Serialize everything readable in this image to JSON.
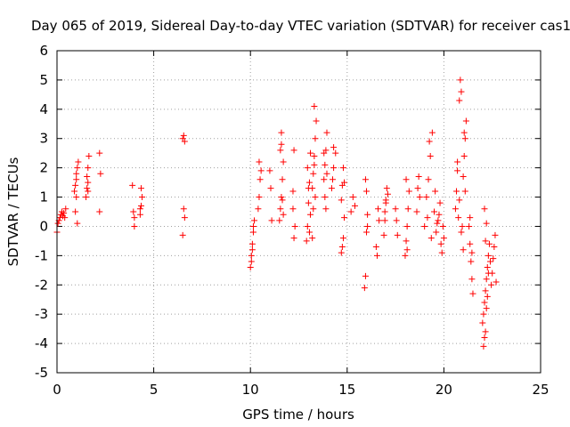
{
  "chart_data": {
    "type": "scatter",
    "title": "Day 065 of 2019, Sidereal Day-to-day VTEC variation (SDTVAR) for receiver cas1",
    "xlabel": "GPS time / hours",
    "ylabel": "SDTVAR / TECUs",
    "xlim": [
      0,
      25
    ],
    "ylim": [
      -5,
      6
    ],
    "xticks": [
      0,
      5,
      10,
      15,
      20,
      25
    ],
    "yticks": [
      -5,
      -4,
      -3,
      -2,
      -1,
      0,
      1,
      2,
      3,
      4,
      5,
      6
    ],
    "xtick_labels": [
      "0",
      "5",
      "10",
      "15",
      "20",
      "25"
    ],
    "ytick_labels": [
      "-5",
      "-4",
      "-3",
      "-2",
      "-1",
      "0",
      "1",
      "2",
      "3",
      "4",
      "5",
      "6"
    ],
    "grid": true,
    "marker": "+",
    "color": "#ff0000",
    "series": [
      {
        "name": "cas1",
        "x": [
          0.0,
          0.05,
          0.1,
          0.15,
          0.2,
          0.25,
          0.3,
          0.35,
          0.4,
          0.45,
          0.9,
          0.95,
          1.0,
          1.0,
          1.05,
          1.1,
          0.95,
          1.05,
          1.0,
          1.5,
          1.55,
          1.6,
          1.6,
          1.65,
          1.55,
          1.6,
          2.2,
          2.25,
          2.2,
          3.9,
          3.95,
          4.0,
          4.0,
          4.3,
          4.35,
          4.4,
          4.35,
          4.3,
          6.5,
          6.55,
          6.6,
          6.55,
          6.6,
          6.5,
          10.0,
          10.05,
          10.1,
          10.15,
          10.2,
          10.1,
          10.05,
          10.15,
          10.4,
          10.45,
          10.5,
          10.55,
          10.45,
          11.0,
          11.05,
          11.1,
          11.5,
          11.55,
          11.6,
          11.65,
          11.7,
          11.55,
          11.6,
          11.65,
          11.7,
          11.6,
          12.2,
          12.25,
          12.3,
          12.2,
          12.25,
          12.9,
          12.95,
          13.0,
          13.05,
          13.1,
          12.95,
          13.0,
          13.05,
          13.1,
          13.2,
          13.25,
          13.3,
          13.35,
          13.4,
          13.3,
          13.25,
          13.35,
          13.2,
          13.3,
          13.8,
          13.85,
          13.9,
          13.95,
          13.85,
          13.9,
          13.8,
          13.95,
          14.2,
          14.25,
          14.3,
          14.3,
          14.4,
          14.7,
          14.75,
          14.8,
          14.85,
          14.75,
          14.8,
          14.7,
          14.85,
          15.2,
          15.3,
          15.4,
          15.9,
          15.95,
          16.0,
          16.05,
          16.0,
          15.95,
          16.05,
          16.5,
          16.55,
          16.6,
          16.65,
          16.9,
          16.95,
          17.0,
          17.05,
          17.1,
          16.95,
          17.0,
          17.5,
          17.55,
          17.6,
          18.0,
          18.05,
          18.1,
          18.15,
          18.2,
          18.05,
          18.1,
          18.6,
          18.65,
          18.7,
          18.75,
          19.0,
          19.1,
          19.2,
          19.3,
          19.4,
          19.25,
          19.15,
          19.35,
          19.5,
          19.6,
          19.7,
          19.8,
          19.9,
          20.0,
          19.65,
          19.75,
          19.85,
          19.55,
          19.95,
          20.6,
          20.65,
          20.7,
          20.75,
          20.8,
          20.85,
          20.9,
          20.95,
          21.0,
          20.7,
          20.8,
          20.9,
          21.0,
          21.05,
          21.1,
          21.15,
          21.05,
          21.1,
          21.3,
          21.35,
          21.4,
          21.45,
          21.5,
          21.35,
          21.45,
          22.0,
          22.05,
          22.1,
          22.15,
          22.2,
          22.25,
          22.3,
          22.35,
          22.4,
          22.45,
          22.5,
          22.55,
          22.6,
          22.65,
          22.7,
          22.05,
          22.1,
          22.15,
          22.2,
          22.25,
          22.3,
          22.15,
          22.2,
          22.1
        ],
        "y": [
          -0.2,
          0.1,
          0.2,
          0.3,
          0.4,
          0.5,
          0.35,
          0.45,
          0.3,
          0.6,
          1.2,
          1.4,
          1.6,
          1.8,
          2.0,
          2.2,
          0.5,
          0.1,
          1.0,
          1.0,
          1.3,
          1.5,
          2.0,
          2.4,
          1.7,
          1.2,
          2.5,
          1.8,
          0.5,
          1.4,
          0.5,
          0.0,
          0.3,
          0.4,
          0.7,
          1.0,
          1.3,
          0.6,
          3.0,
          3.1,
          2.9,
          0.6,
          0.3,
          -0.3,
          -1.4,
          -1.0,
          -0.6,
          -0.2,
          0.2,
          -0.8,
          -1.2,
          0.0,
          0.6,
          1.0,
          1.6,
          1.9,
          2.2,
          1.9,
          1.3,
          0.2,
          0.2,
          0.6,
          1.0,
          1.6,
          2.2,
          2.6,
          3.2,
          0.9,
          0.4,
          2.8,
          1.2,
          -0.4,
          0.0,
          0.6,
          2.6,
          -0.5,
          0.0,
          0.8,
          1.5,
          2.5,
          2.0,
          1.3,
          -0.2,
          0.4,
          1.3,
          1.8,
          2.4,
          3.0,
          3.6,
          4.1,
          0.6,
          1.0,
          -0.4,
          2.1,
          1.6,
          2.1,
          2.6,
          3.2,
          1.0,
          0.6,
          2.5,
          1.8,
          1.3,
          1.6,
          2.0,
          2.7,
          2.5,
          0.9,
          1.4,
          2.0,
          1.5,
          -0.7,
          -0.4,
          -0.9,
          0.3,
          0.5,
          1.0,
          0.7,
          -2.1,
          -1.7,
          -0.2,
          0.4,
          1.2,
          1.6,
          0.0,
          -0.7,
          -1.0,
          0.6,
          0.2,
          -0.3,
          0.2,
          0.8,
          1.3,
          1.1,
          0.5,
          0.9,
          0.6,
          0.2,
          -0.3,
          -1.0,
          -0.5,
          0.0,
          0.6,
          1.2,
          1.6,
          -0.8,
          0.5,
          1.3,
          1.7,
          1.0,
          0.0,
          1.0,
          1.6,
          2.4,
          3.2,
          2.9,
          0.3,
          -0.4,
          0.5,
          -0.2,
          0.2,
          0.8,
          -0.9,
          -0.4,
          0.1,
          0.4,
          -0.6,
          1.2,
          0.0,
          0.6,
          1.2,
          1.9,
          0.3,
          4.3,
          5.0,
          4.6,
          0.0,
          -0.8,
          2.2,
          0.9,
          -0.2,
          1.7,
          2.4,
          3.0,
          3.6,
          3.2,
          1.2,
          0.0,
          -0.6,
          -1.2,
          -1.8,
          -2.3,
          0.3,
          -0.9,
          -3.3,
          -3.0,
          -2.6,
          -2.2,
          -1.8,
          -1.4,
          -1.0,
          -0.6,
          -1.2,
          -2.0,
          -1.6,
          -1.1,
          -0.7,
          -0.3,
          -1.9,
          -4.1,
          -3.8,
          -3.6,
          -2.8,
          -2.4,
          -1.6,
          -0.5,
          0.1,
          0.6
        ]
      }
    ]
  }
}
